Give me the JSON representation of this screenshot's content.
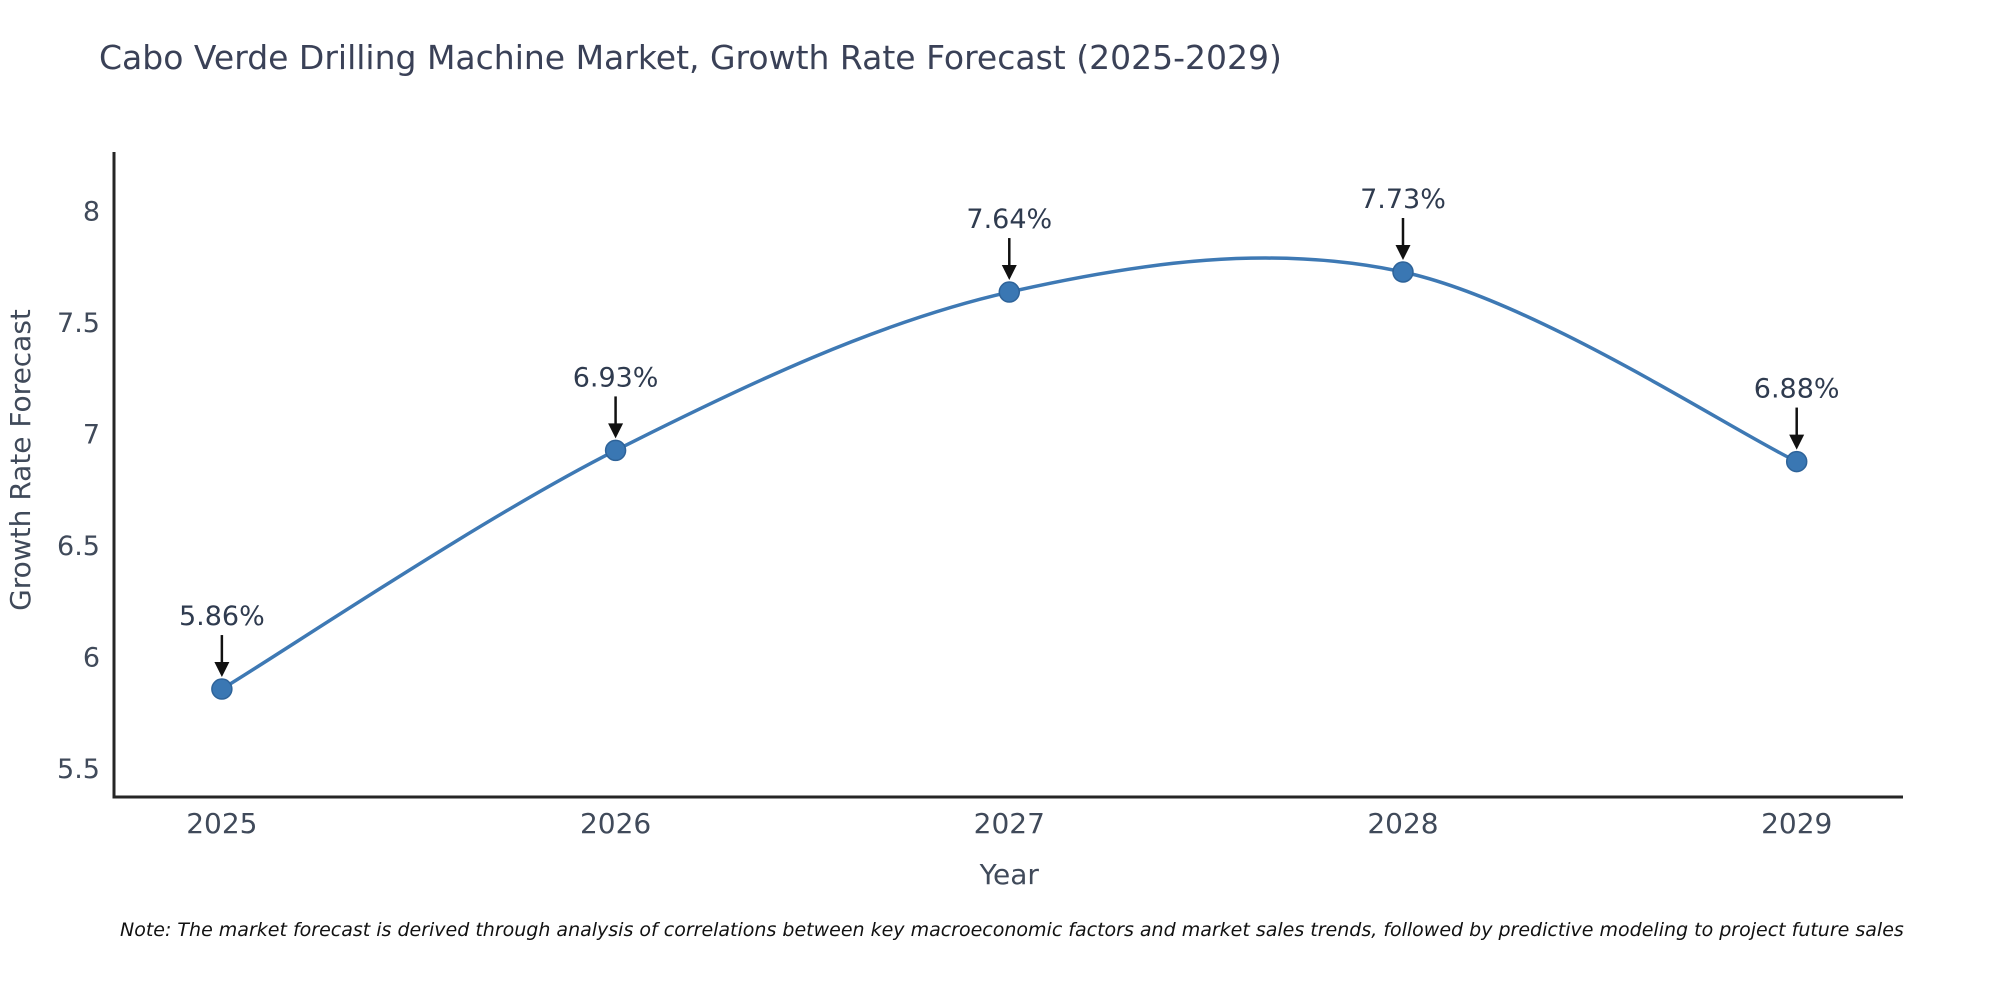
{
  "title": "Cabo Verde Drilling Machine Market, Growth Rate Forecast (2025-2029)",
  "note": "Note: The market forecast is derived through analysis of correlations between key macroeconomic factors and market sales trends, followed by predictive modeling to project future sales",
  "chart_data": {
    "type": "line",
    "title": "Cabo Verde Drilling Machine Market, Growth Rate Forecast (2025-2029)",
    "xlabel": "Year",
    "ylabel": "Growth Rate Forecast",
    "x": [
      2025,
      2026,
      2027,
      2028,
      2029
    ],
    "y": [
      5.86,
      6.93,
      7.64,
      7.73,
      6.88
    ],
    "point_labels": [
      "5.86%",
      "6.93%",
      "7.64%",
      "7.73%",
      "6.88%"
    ],
    "xticks": [
      "2025",
      "2026",
      "2027",
      "2028",
      "2029"
    ],
    "yticks": [
      5.5,
      6,
      6.5,
      7,
      7.5,
      8
    ],
    "ytick_labels": [
      "5.5",
      "6",
      "6.5",
      "7",
      "7.5",
      "8"
    ],
    "xlim": [
      2024.726,
      2029.27
    ],
    "ylim": [
      5.376,
      8.268
    ],
    "line_shape": "spline",
    "grid": false,
    "legend": false,
    "colors": {
      "line": "#3e79b4",
      "marker": "#3a77b3",
      "marker_edge": "#2e6399",
      "axis": "#262626",
      "tick_text": "#404a5a",
      "annotation_text": "#2f3b4f",
      "arrow": "#111111",
      "title_text": "#3a4157"
    }
  }
}
